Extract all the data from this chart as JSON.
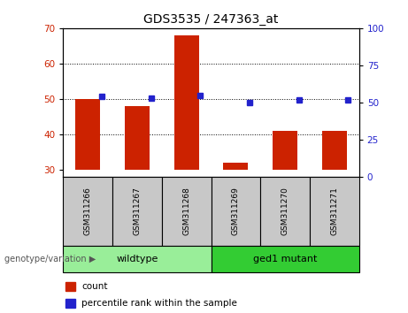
{
  "title": "GDS3535 / 247363_at",
  "samples": [
    "GSM311266",
    "GSM311267",
    "GSM311268",
    "GSM311269",
    "GSM311270",
    "GSM311271"
  ],
  "counts": [
    50,
    48,
    68,
    32,
    41,
    41
  ],
  "percentile_ranks": [
    54,
    53,
    55,
    50,
    52,
    52
  ],
  "ylim_left": [
    28,
    70
  ],
  "ylim_right": [
    0,
    100
  ],
  "yticks_left": [
    30,
    40,
    50,
    60,
    70
  ],
  "yticks_right": [
    0,
    25,
    50,
    75,
    100
  ],
  "bar_color": "#cc2200",
  "dot_color": "#2222cc",
  "bar_bottom": 30,
  "groups": [
    {
      "label": "wildtype",
      "indices": [
        0,
        1,
        2
      ],
      "color": "#99ee99"
    },
    {
      "label": "ged1 mutant",
      "indices": [
        3,
        4,
        5
      ],
      "color": "#33cc33"
    }
  ],
  "group_label": "genotype/variation",
  "legend_items": [
    {
      "label": "count",
      "color": "#cc2200"
    },
    {
      "label": "percentile rank within the sample",
      "color": "#2222cc"
    }
  ],
  "grid_yticks": [
    40,
    50,
    60
  ],
  "plot_bg": "#ffffff",
  "tick_label_color_left": "#cc2200",
  "tick_label_color_right": "#2222cc",
  "sample_box_color": "#c8c8c8",
  "bar_width": 0.5
}
